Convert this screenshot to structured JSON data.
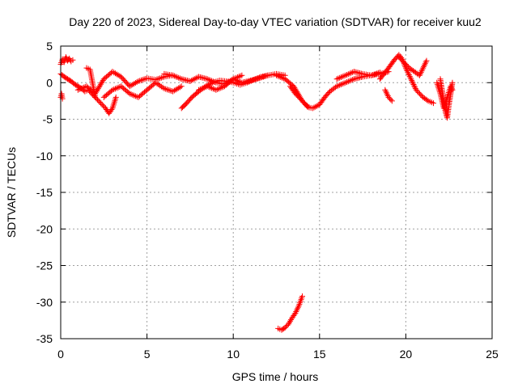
{
  "chart_data": {
    "type": "scatter",
    "title": "Day 220 of 2023, Sidereal Day-to-day VTEC variation (SDTVAR) for receiver kuu2",
    "xlabel": "GPS time / hours",
    "ylabel": "SDTVAR / TECUs",
    "xlim": [
      0,
      25
    ],
    "ylim": [
      -35,
      5
    ],
    "xticks": [
      0,
      5,
      10,
      15,
      20,
      25
    ],
    "yticks": [
      5,
      0,
      -5,
      -10,
      -15,
      -20,
      -25,
      -30,
      -35
    ],
    "grid": true,
    "marker": "+",
    "color": "#ff0000",
    "series": [
      {
        "name": "SDTVAR",
        "tracks": [
          {
            "x": [
              0.0,
              0.1,
              0.2,
              0.3,
              0.4,
              0.5,
              0.6,
              0.7
            ],
            "y": [
              2.5,
              3.2,
              2.8,
              3.5,
              3.0,
              3.3,
              2.9,
              3.1
            ]
          },
          {
            "x": [
              0.0,
              0.2,
              0.4,
              0.6,
              0.8,
              1.0,
              1.2,
              1.4,
              1.6,
              1.8,
              2.0,
              2.2,
              2.4,
              2.6,
              2.8,
              3.0,
              3.2
            ],
            "y": [
              1.2,
              0.8,
              0.5,
              0.2,
              -0.2,
              -0.5,
              -0.8,
              -1.2,
              -1.0,
              -1.5,
              -2.0,
              -2.5,
              -3.0,
              -3.5,
              -4.2,
              -3.5,
              -2.0
            ]
          },
          {
            "x": [
              0.0,
              0.05,
              0.1
            ],
            "y": [
              -2.0,
              -1.5,
              -2.2
            ]
          },
          {
            "x": [
              1.0,
              1.5,
              2.0,
              2.5,
              3.0,
              3.5,
              4.0,
              4.5,
              5.0,
              5.5,
              6.0,
              6.5
            ],
            "y": [
              -1.0,
              -0.5,
              -1.5,
              0.5,
              1.5,
              0.8,
              -0.5,
              0.2,
              0.6,
              0.4,
              0.8,
              1.0
            ]
          },
          {
            "x": [
              2.5,
              3.0,
              3.5,
              4.0,
              4.5,
              5.0,
              5.5,
              6.0,
              6.5,
              7.0
            ],
            "y": [
              -2.0,
              -1.0,
              -0.5,
              -1.5,
              -2.0,
              -1.0,
              0.0,
              -0.8,
              -1.2,
              -0.5
            ]
          },
          {
            "x": [
              1.5,
              1.7,
              2.0
            ],
            "y": [
              2.0,
              1.8,
              -2.0
            ]
          },
          {
            "x": [
              6.0,
              6.5,
              7.0,
              7.5,
              8.0,
              8.5,
              9.0,
              9.5,
              10.0,
              10.5,
              11.0,
              11.5,
              12.0,
              12.5,
              13.0
            ],
            "y": [
              1.2,
              1.0,
              0.5,
              0.2,
              0.8,
              0.5,
              0.0,
              -0.2,
              0.5,
              0.0,
              0.3,
              0.6,
              1.0,
              1.2,
              1.0
            ]
          },
          {
            "x": [
              7.0,
              7.3,
              7.6,
              8.0,
              8.4,
              8.8,
              9.2,
              9.6,
              10.0,
              10.4,
              10.8,
              11.2,
              11.6,
              12.0
            ],
            "y": [
              -3.5,
              -2.8,
              -2.0,
              -1.2,
              -0.5,
              0.0,
              0.3,
              0.2,
              0.0,
              -0.3,
              0.0,
              0.4,
              0.8,
              1.0
            ]
          },
          {
            "x": [
              8.0,
              8.5,
              9.0,
              9.5,
              10.0,
              10.5
            ],
            "y": [
              -1.0,
              -0.5,
              -1.0,
              -0.5,
              0.5,
              1.0
            ]
          },
          {
            "x": [
              12.5,
              13.0,
              13.5,
              14.0,
              14.3,
              14.6,
              15.0,
              15.3,
              15.6,
              16.0,
              16.5,
              17.0,
              17.5,
              18.0,
              18.5,
              19.0
            ],
            "y": [
              1.0,
              0.5,
              -0.5,
              -2.5,
              -3.3,
              -3.5,
              -3.0,
              -2.0,
              -1.2,
              -0.5,
              0.0,
              0.5,
              0.8,
              1.0,
              1.2,
              1.5
            ]
          },
          {
            "x": [
              13.3,
              13.6,
              14.0,
              14.2,
              14.4
            ],
            "y": [
              -0.5,
              -1.5,
              -2.5,
              -3.0,
              -3.4
            ]
          },
          {
            "x": [
              16.0,
              16.5,
              17.0,
              17.5,
              18.0,
              18.5
            ],
            "y": [
              0.5,
              1.0,
              1.5,
              1.2,
              1.0,
              1.4
            ]
          },
          {
            "x": [
              18.5,
              19.0,
              19.3,
              19.6,
              19.8,
              20.0,
              20.3,
              20.6,
              21.0,
              21.3,
              21.6
            ],
            "y": [
              0.5,
              2.0,
              3.0,
              3.8,
              3.2,
              2.0,
              0.5,
              -1.0,
              -2.0,
              -2.5,
              -2.8
            ]
          },
          {
            "x": [
              19.6,
              19.8,
              20.0,
              20.2,
              20.5,
              20.8,
              21.0,
              21.2
            ],
            "y": [
              3.5,
              3.0,
              2.5,
              2.0,
              1.5,
              1.0,
              2.0,
              3.0
            ]
          },
          {
            "x": [
              18.8,
              19.0,
              19.2
            ],
            "y": [
              -1.0,
              -2.0,
              -2.5
            ]
          },
          {
            "x": [
              22.0,
              22.1,
              22.2,
              22.3,
              22.4,
              22.5,
              22.6,
              22.7
            ],
            "y": [
              0.5,
              -1.0,
              -2.5,
              -4.0,
              -4.8,
              -3.0,
              -1.5,
              0.0
            ]
          },
          {
            "x": [
              21.8,
              22.0,
              22.2,
              22.4,
              22.6,
              22.7
            ],
            "y": [
              0.0,
              -1.5,
              -3.5,
              -2.0,
              -0.5,
              -1.0
            ]
          },
          {
            "x": [
              12.6,
              12.8,
              13.0,
              13.2,
              13.4,
              13.6,
              13.8,
              14.0
            ],
            "y": [
              -33.6,
              -33.8,
              -33.5,
              -33.0,
              -32.2,
              -31.5,
              -30.5,
              -29.2
            ]
          }
        ]
      }
    ]
  }
}
